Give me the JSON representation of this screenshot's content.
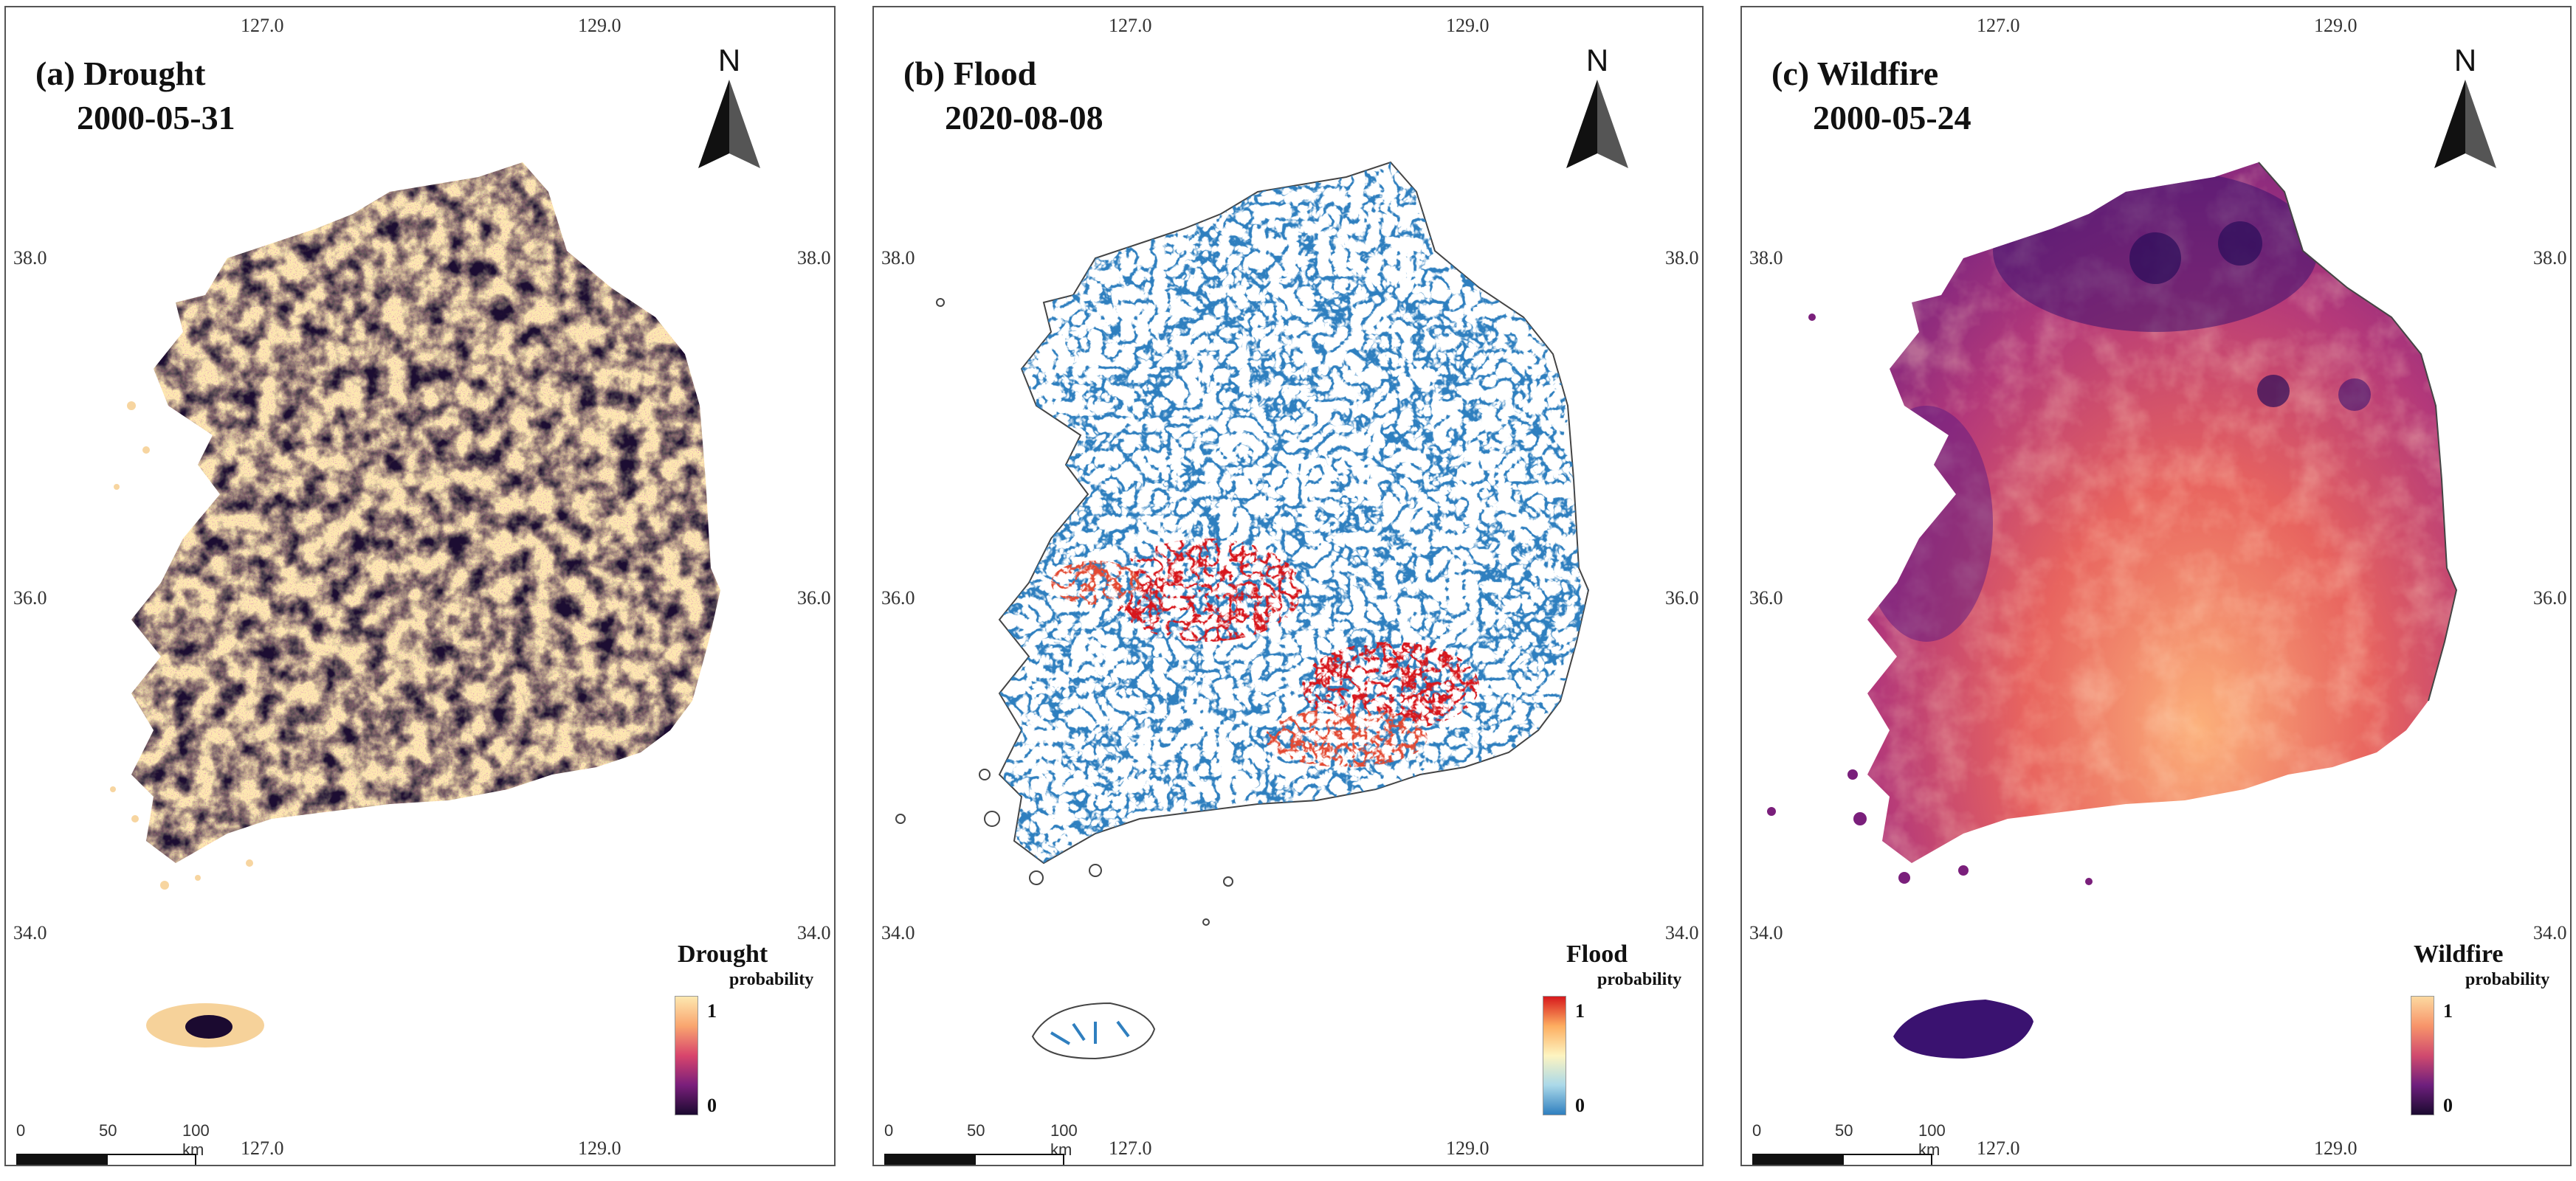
{
  "panels": [
    {
      "id": "drought",
      "label": "(a) Drought",
      "date": "2000-05-31",
      "north": "N",
      "lon_ticks": [
        "127.0",
        "129.0"
      ],
      "lat_ticks": [
        "38.0",
        "36.0",
        "34.0"
      ],
      "legend_title": "Drought",
      "legend_subtitle": "probability",
      "legend_max": "1",
      "legend_min": "0",
      "scale_labels": [
        "0",
        "50",
        "100 km"
      ],
      "colormap": "magma",
      "colors": {
        "low": "#1b0a30",
        "mid": "#b7367a",
        "high": "#fde8b0"
      }
    },
    {
      "id": "flood",
      "label": "(b) Flood",
      "date": "2020-08-08",
      "north": "N",
      "lon_ticks": [
        "127.0",
        "129.0"
      ],
      "lat_ticks": [
        "38.0",
        "36.0",
        "34.0"
      ],
      "legend_title": "Flood",
      "legend_subtitle": "probability",
      "legend_max": "1",
      "legend_min": "0",
      "scale_labels": [
        "0",
        "50",
        "100 km"
      ],
      "colormap": "blue-yellow-red",
      "colors": {
        "low": "#2f7fbf",
        "mid": "#fdf4c0",
        "high": "#d7191c"
      }
    },
    {
      "id": "wildfire",
      "label": "(c) Wildfire",
      "date": "2000-05-24",
      "north": "N",
      "lon_ticks": [
        "127.0",
        "129.0"
      ],
      "lat_ticks": [
        "38.0",
        "36.0",
        "34.0"
      ],
      "legend_title": "Wildfire",
      "legend_subtitle": "probability",
      "legend_max": "1",
      "legend_min": "0",
      "scale_labels": [
        "0",
        "50",
        "100 km"
      ],
      "colormap": "magma",
      "colors": {
        "low": "#1b0a30",
        "mid": "#a1327e",
        "high": "#fcd9a0"
      }
    }
  ]
}
